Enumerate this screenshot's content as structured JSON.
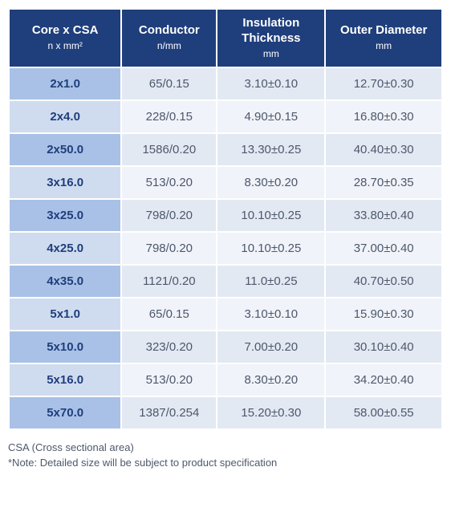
{
  "table": {
    "type": "table",
    "header_bg": "#1f3e7c",
    "header_fg": "#ffffff",
    "rowlabel_bg_odd": "#a9c1e6",
    "rowlabel_bg_even": "#cfdcef",
    "datacell_bg_odd": "#e3e9f3",
    "datacell_bg_even": "#f0f3f9",
    "rowlabel_fg": "#1f3e7c",
    "datacell_fg": "#4d586b",
    "header_fontsize": 15,
    "subheader_fontsize": 12,
    "cell_fontsize": 15,
    "column_widths_pct": [
      26,
      22,
      25,
      27
    ],
    "columns": [
      {
        "main": "Core x CSA",
        "sub": "n x mm²"
      },
      {
        "main": "Conductor",
        "sub": "n/mm"
      },
      {
        "main": "Insulation Thickness",
        "sub": "mm"
      },
      {
        "main": "Outer Diameter",
        "sub": "mm"
      }
    ],
    "rows": [
      [
        "2x1.0",
        "65/0.15",
        "3.10±0.10",
        "12.70±0.30"
      ],
      [
        "2x4.0",
        "228/0.15",
        "4.90±0.15",
        "16.80±0.30"
      ],
      [
        "2x50.0",
        "1586/0.20",
        "13.30±0.25",
        "40.40±0.30"
      ],
      [
        "3x16.0",
        "513/0.20",
        "8.30±0.20",
        "28.70±0.35"
      ],
      [
        "3x25.0",
        "798/0.20",
        "10.10±0.25",
        "33.80±0.40"
      ],
      [
        "4x25.0",
        "798/0.20",
        "10.10±0.25",
        "37.00±0.40"
      ],
      [
        "4x35.0",
        "1121/0.20",
        "11.0±0.25",
        "40.70±0.50"
      ],
      [
        "5x1.0",
        "65/0.15",
        "3.10±0.10",
        "15.90±0.30"
      ],
      [
        "5x10.0",
        "323/0.20",
        "7.00±0.20",
        "30.10±0.40"
      ],
      [
        "5x16.0",
        "513/0.20",
        "8.30±0.20",
        "34.20±0.40"
      ],
      [
        "5x70.0",
        "1387/0.254",
        "15.20±0.30",
        "58.00±0.55"
      ]
    ]
  },
  "footnotes": {
    "line1": "CSA (Cross sectional area)",
    "line2": "*Note: Detailed size will be subject to product specification",
    "fg": "#4d586b",
    "fontsize": 13
  }
}
